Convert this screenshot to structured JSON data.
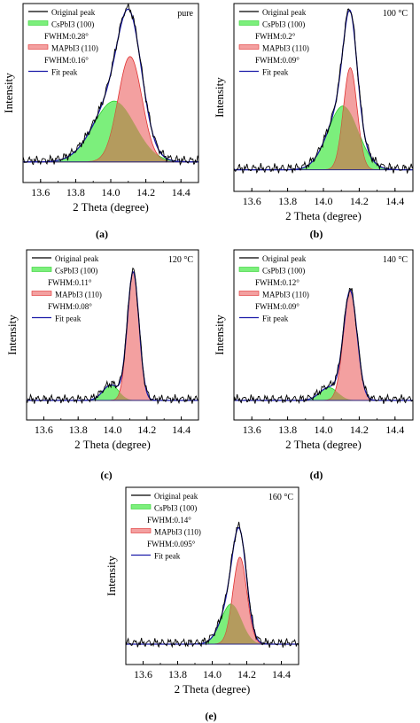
{
  "chart_data": [
    {
      "type": "area",
      "panel_label": "(a)",
      "condition": "pure",
      "xlabel": "2 Theta (degree)",
      "ylabel": "Intensity",
      "xlim": [
        13.5,
        14.5
      ],
      "ylim": [
        0,
        1.15
      ],
      "xticks": [
        "13.6",
        "13.8",
        "14.0",
        "14.2",
        "14.4"
      ],
      "legend": [
        "Original peak",
        "CsPbI3 (100)",
        "FWHM:0.28°",
        "MAPbI3 (110)",
        "FWHM:0.16°",
        "Fit peak"
      ],
      "peaks": [
        {
          "series": "CsPbI3 (100)",
          "center": 14.02,
          "fwhm": 0.28,
          "height": 0.45
        },
        {
          "series": "MAPbI3 (110)",
          "center": 14.11,
          "fwhm": 0.16,
          "height": 0.78
        }
      ]
    },
    {
      "type": "area",
      "panel_label": "(b)",
      "condition": "100 °C",
      "xlabel": "2 Theta (degree)",
      "ylabel": "Intensity",
      "xlim": [
        13.5,
        14.5
      ],
      "ylim": [
        0,
        1.15
      ],
      "xticks": [
        "13.6",
        "13.8",
        "14.0",
        "14.2",
        "14.4"
      ],
      "legend": [
        "Original peak",
        "CsPbI3 (100)",
        "FWHM:0.2°",
        "MAPbI3 (110)",
        "FWHM:0.09°",
        "Fit peak"
      ],
      "peaks": [
        {
          "series": "CsPbI3 (100)",
          "center": 14.11,
          "fwhm": 0.2,
          "height": 0.45
        },
        {
          "series": "MAPbI3 (110)",
          "center": 14.15,
          "fwhm": 0.09,
          "height": 0.72
        }
      ]
    },
    {
      "type": "area",
      "panel_label": "(c)",
      "condition": "120 °C",
      "xlabel": "2 Theta (degree)",
      "ylabel": "Intensity",
      "xlim": [
        13.5,
        14.5
      ],
      "ylim": [
        0,
        1.15
      ],
      "xticks": [
        "13.6",
        "13.8",
        "14.0",
        "14.2",
        "14.4"
      ],
      "legend": [
        "Original peak",
        "CsPbI3 (100)",
        "FWHM:0.11°",
        "MAPbI3 (110)",
        "FWHM:0.08°",
        "Fit peak"
      ],
      "peaks": [
        {
          "series": "CsPbI3 (100)",
          "center": 13.99,
          "fwhm": 0.11,
          "height": 0.12
        },
        {
          "series": "MAPbI3 (110)",
          "center": 14.12,
          "fwhm": 0.08,
          "height": 1.0
        }
      ]
    },
    {
      "type": "area",
      "panel_label": "(d)",
      "condition": "140 °C",
      "xlabel": "2 Theta (degree)",
      "ylabel": "Intensity",
      "xlim": [
        13.5,
        14.5
      ],
      "ylim": [
        0,
        1.15
      ],
      "xticks": [
        "13.6",
        "13.8",
        "14.0",
        "14.2",
        "14.4"
      ],
      "legend": [
        "Original peak",
        "CsPbI3 (100)",
        "FWHM:0.12°",
        "MAPbI3 (110)",
        "FWHM:0.09°",
        "Fit peak"
      ],
      "peaks": [
        {
          "series": "CsPbI3 (100)",
          "center": 14.03,
          "fwhm": 0.12,
          "height": 0.1
        },
        {
          "series": "MAPbI3 (110)",
          "center": 14.15,
          "fwhm": 0.09,
          "height": 0.85
        }
      ]
    },
    {
      "type": "area",
      "panel_label": "(e)",
      "condition": "160 °C",
      "xlabel": "2 Theta (degree)",
      "ylabel": "Intensity",
      "xlim": [
        13.5,
        14.5
      ],
      "ylim": [
        0,
        1.15
      ],
      "xticks": [
        "13.6",
        "13.8",
        "14.0",
        "14.2",
        "14.4"
      ],
      "legend": [
        "Original peak",
        "CsPbI3 (100)",
        "FWHM:0.14°",
        "MAPbI3 (110)",
        "FWHM:0.095°",
        "Fit peak"
      ],
      "peaks": [
        {
          "series": "CsPbI3 (100)",
          "center": 14.11,
          "fwhm": 0.14,
          "height": 0.3
        },
        {
          "series": "MAPbI3 (110)",
          "center": 14.16,
          "fwhm": 0.095,
          "height": 0.65
        }
      ]
    }
  ],
  "colors": {
    "original": "#000000",
    "fit": "#1a1aa8",
    "cs_fill": "#7cef7c",
    "cs_line": "#2fd12f",
    "ma_fill": "#f3a0a0",
    "ma_line": "#e03030",
    "overlap_fill": "#a89a52"
  }
}
